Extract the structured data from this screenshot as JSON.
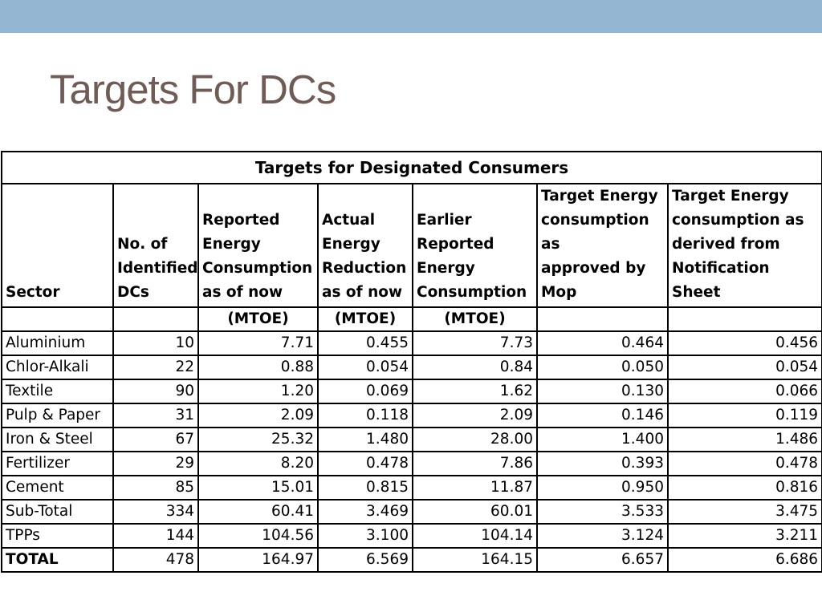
{
  "slide": {
    "title": "Targets For DCs"
  },
  "colors": {
    "top_bar": "#94b6d2",
    "title_text": "#6f5c57"
  },
  "table": {
    "caption": "Targets for Designated Consumers",
    "headers": [
      [
        "Sector"
      ],
      [
        "No. of",
        "Identified",
        "DCs"
      ],
      [
        "Reported",
        "Energy",
        "Consumption",
        "as of now"
      ],
      [
        "Actual",
        "Energy",
        "Reduction",
        "as of now"
      ],
      [
        "Earlier",
        "Reported",
        "Energy",
        "Consumption"
      ],
      [
        "Target Energy",
        "consumption as",
        "approved by",
        "Mop"
      ],
      [
        "Target Energy",
        "consumption as",
        "derived from",
        "Notification Sheet"
      ]
    ],
    "units": [
      "",
      "",
      "(MTOE)",
      "(MTOE)",
      "(MTOE)",
      "",
      ""
    ],
    "rows": [
      [
        "Aluminium",
        "10",
        "7.71",
        "0.455",
        "7.73",
        "0.464",
        "0.456"
      ],
      [
        "Chlor-Alkali",
        "22",
        "0.88",
        "0.054",
        "0.84",
        "0.050",
        "0.054"
      ],
      [
        "Textile",
        "90",
        "1.20",
        "0.069",
        "1.62",
        "0.130",
        "0.066"
      ],
      [
        "Pulp & Paper",
        "31",
        "2.09",
        "0.118",
        "2.09",
        "0.146",
        "0.119"
      ],
      [
        "Iron & Steel",
        "67",
        "25.32",
        "1.480",
        "28.00",
        "1.400",
        "1.486"
      ],
      [
        "Fertilizer",
        "29",
        "8.20",
        "0.478",
        "7.86",
        "0.393",
        "0.478"
      ],
      [
        "Cement",
        "85",
        "15.01",
        "0.815",
        "11.87",
        "0.950",
        "0.816"
      ],
      [
        "Sub-Total",
        "334",
        "60.41",
        "3.469",
        "60.01",
        "3.533",
        "3.475"
      ],
      [
        "TPPs",
        "144",
        "104.56",
        "3.100",
        "104.14",
        "3.124",
        "3.211"
      ],
      [
        "TOTAL",
        "478",
        "164.97",
        "6.569",
        "164.15",
        "6.657",
        "6.686"
      ]
    ]
  }
}
